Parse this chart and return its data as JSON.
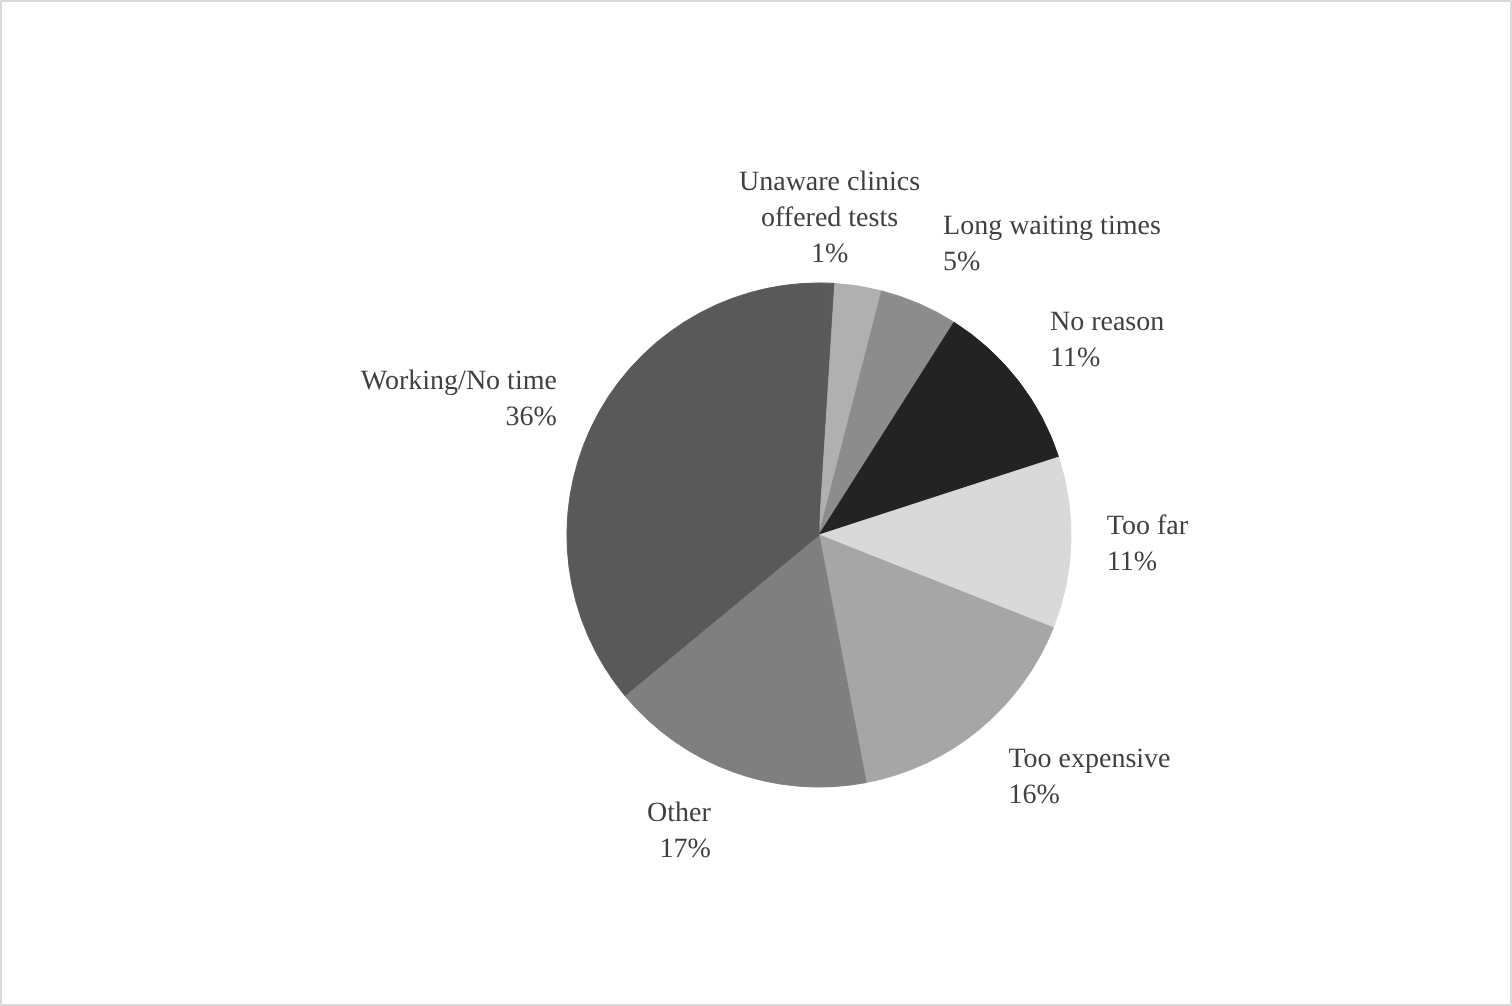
{
  "chart_data": {
    "type": "pie",
    "categories": [
      "Unaware clinics\noffered tests",
      null,
      "Long waiting times",
      "No reason",
      "Too far",
      "Too expensive",
      "Other",
      "Working/No time"
    ],
    "values": [
      1,
      3,
      5,
      11,
      11,
      16,
      17,
      36
    ],
    "value_labels": [
      "1%",
      null,
      "5%",
      "11%",
      "11%",
      "16%",
      "17%",
      "36%"
    ],
    "colors": [
      "#5a5a5a",
      "#b0b0b0",
      "#8c8c8c",
      "#232323",
      "#d9d9d9",
      "#a6a6a6",
      "#7f7f7f",
      "#595959"
    ]
  }
}
